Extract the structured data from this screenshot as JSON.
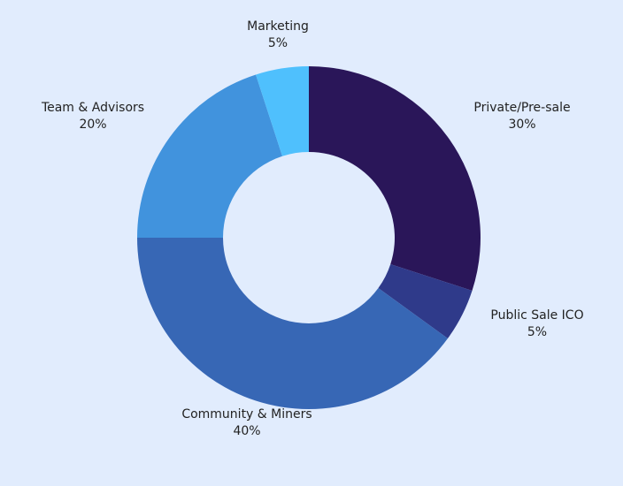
{
  "chart_data": {
    "type": "pie",
    "donut": true,
    "title": "",
    "categories": [
      "Private/Pre-sale",
      "Public Sale ICO",
      "Community & Miners",
      "Team & Advisors",
      "Marketing"
    ],
    "values": [
      30,
      5,
      40,
      20,
      5
    ],
    "value_labels": [
      "30%",
      "5%",
      "40%",
      "20%",
      "5%"
    ],
    "colors": [
      "#2a1659",
      "#2f3a8a",
      "#3767b5",
      "#4193dd",
      "#4fc0fd"
    ],
    "legend": "none"
  }
}
